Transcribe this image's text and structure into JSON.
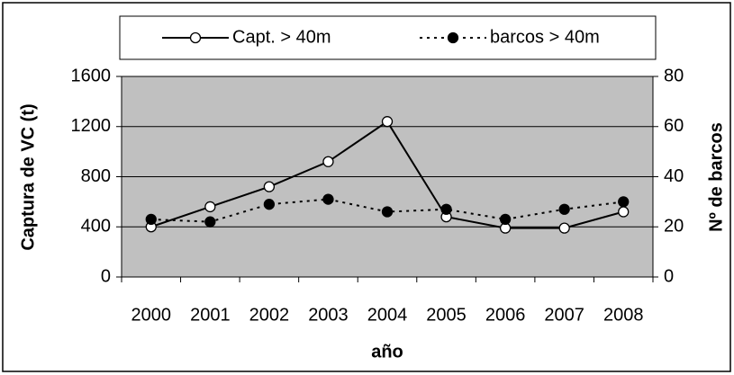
{
  "chart_data": {
    "type": "line",
    "categories": [
      "2000",
      "2001",
      "2002",
      "2003",
      "2004",
      "2005",
      "2006",
      "2007",
      "2008"
    ],
    "series": [
      {
        "name": "Capt. > 40m",
        "color": "#000000",
        "line_style": "solid",
        "marker_fill": "#ffffff",
        "values": [
          400,
          560,
          720,
          920,
          1240,
          480,
          390,
          390,
          520
        ]
      },
      {
        "name": "barcos > 40m",
        "color": "#000000",
        "line_style": "dotted",
        "marker_fill": "#000000",
        "axis": "y2",
        "values": [
          23,
          22,
          29,
          31,
          26,
          27,
          23,
          27,
          30
        ]
      }
    ],
    "ylabel": "Captura de VC (t)",
    "y2label": "Nº de barcos",
    "xlabel": "año",
    "ylim": [
      0,
      1600
    ],
    "yticks": [
      0,
      400,
      800,
      1200,
      1600
    ],
    "y2lim": [
      0,
      80
    ],
    "y2ticks": [
      0,
      20,
      40,
      60,
      80
    ],
    "grid": true,
    "legend": "top",
    "plot_background": "#c0c0c0"
  }
}
